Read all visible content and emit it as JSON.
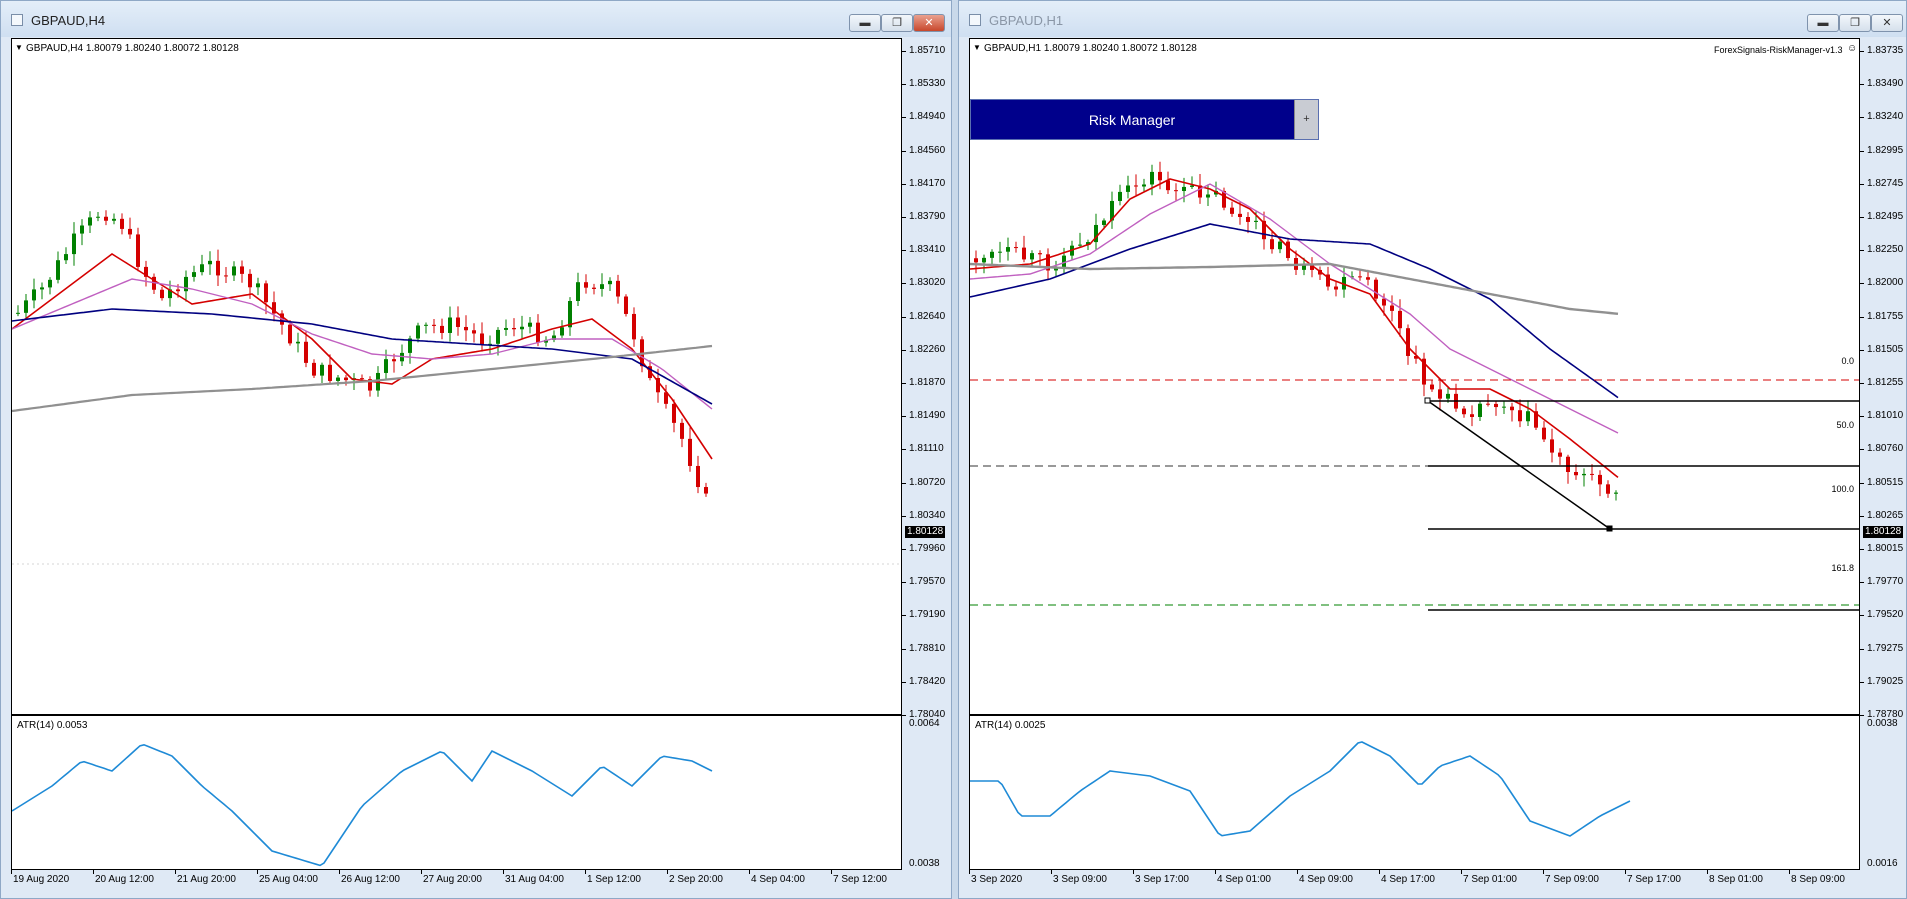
{
  "left": {
    "window_title": "GBPAUD,H4",
    "header": "GBPAUD,H4  1.80079 1.80240 1.80072 1.80128",
    "current_price": "1.80128",
    "y_labels": [
      "1.85710",
      "1.85330",
      "1.84940",
      "1.84560",
      "1.84170",
      "1.83790",
      "1.83410",
      "1.83020",
      "1.82640",
      "1.82260",
      "1.81870",
      "1.81490",
      "1.81110",
      "1.80720",
      "1.80340",
      "1.79960",
      "1.79570",
      "1.79190",
      "1.78810",
      "1.78420",
      "1.78040"
    ],
    "atr_label": "ATR(14) 0.0053",
    "atr_max": "0.0064",
    "atr_min": "0.0038",
    "x_labels": [
      "19 Aug 2020",
      "20 Aug 12:00",
      "21 Aug 20:00",
      "25 Aug 04:00",
      "26 Aug 12:00",
      "27 Aug 20:00",
      "31 Aug 04:00",
      "1 Sep 12:00",
      "2 Sep 20:00",
      "4 Sep 04:00",
      "7 Sep 12:00"
    ]
  },
  "right": {
    "window_title": "GBPAUD,H1",
    "header": "GBPAUD,H1  1.80079 1.80240 1.80072 1.80128",
    "indicator_name": "ForexSignals-RiskManager-v1.3",
    "panel_label": "Risk Manager",
    "panel_button": "+",
    "current_price": "1.80128",
    "y_labels": [
      "1.83735",
      "1.83490",
      "1.83240",
      "1.82995",
      "1.82745",
      "1.82495",
      "1.82250",
      "1.82000",
      "1.81755",
      "1.81505",
      "1.81255",
      "1.81010",
      "1.80760",
      "1.80515",
      "1.80265",
      "1.80015",
      "1.79770",
      "1.79520",
      "1.79275",
      "1.79025",
      "1.78780"
    ],
    "fib_labels": [
      "0.0",
      "50.0",
      "100.0",
      "161.8"
    ],
    "atr_label": "ATR(14) 0.0025",
    "atr_max": "0.0038",
    "atr_min": "0.0016",
    "x_labels": [
      "3 Sep 2020",
      "3 Sep 09:00",
      "3 Sep 17:00",
      "4 Sep 01:00",
      "4 Sep 09:00",
      "4 Sep 17:00",
      "7 Sep 01:00",
      "7 Sep 09:00",
      "7 Sep 17:00",
      "8 Sep 01:00",
      "8 Sep 09:00"
    ]
  },
  "colors": {
    "bull": "#008000",
    "bear": "#d40000",
    "ma_fast": "#d40000",
    "ma_mid": "#c060c0",
    "ma_slow": "#000080",
    "ma_long": "#909090",
    "atr": "#1e8ad6",
    "panel": "#00008b"
  }
}
